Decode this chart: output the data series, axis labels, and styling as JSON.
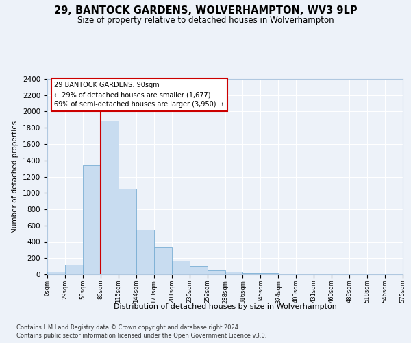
{
  "title1": "29, BANTOCK GARDENS, WOLVERHAMPTON, WV3 9LP",
  "title2": "Size of property relative to detached houses in Wolverhampton",
  "xlabel": "Distribution of detached houses by size in Wolverhampton",
  "ylabel": "Number of detached properties",
  "bins": [
    "0sqm",
    "29sqm",
    "58sqm",
    "86sqm",
    "115sqm",
    "144sqm",
    "173sqm",
    "201sqm",
    "230sqm",
    "259sqm",
    "288sqm",
    "316sqm",
    "345sqm",
    "374sqm",
    "403sqm",
    "431sqm",
    "460sqm",
    "489sqm",
    "518sqm",
    "546sqm",
    "575sqm"
  ],
  "values": [
    30,
    120,
    1340,
    1890,
    1050,
    550,
    340,
    165,
    100,
    50,
    30,
    20,
    15,
    10,
    5,
    3,
    2,
    1,
    0,
    1
  ],
  "bar_color": "#c8dcf0",
  "bar_edge_color": "#7aaed4",
  "annotation_text": "29 BANTOCK GARDENS: 90sqm\n← 29% of detached houses are smaller (1,677)\n69% of semi-detached houses are larger (3,950) →",
  "annotation_box_color": "white",
  "annotation_box_edge": "#cc0000",
  "vline_color": "#cc0000",
  "vline_x_bin": 3,
  "ylim": [
    0,
    2400
  ],
  "yticks": [
    0,
    200,
    400,
    600,
    800,
    1000,
    1200,
    1400,
    1600,
    1800,
    2000,
    2200,
    2400
  ],
  "footnote1": "Contains HM Land Registry data © Crown copyright and database right 2024.",
  "footnote2": "Contains public sector information licensed under the Open Government Licence v3.0.",
  "plot_bg_color": "#edf2f9",
  "fig_bg_color": "#edf2f9"
}
